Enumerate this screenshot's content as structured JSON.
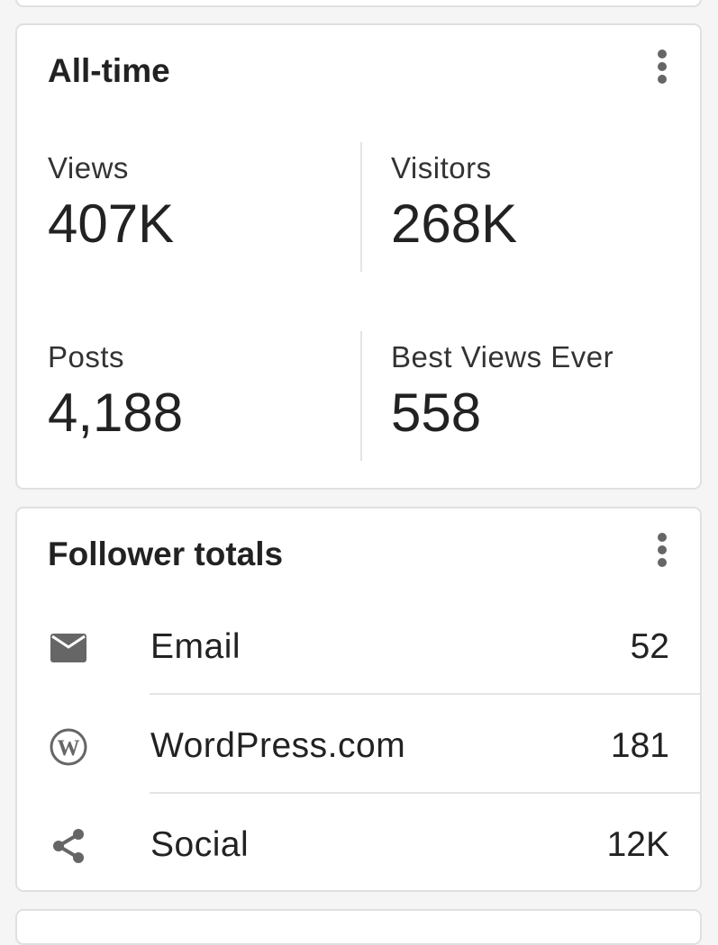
{
  "all_time": {
    "title": "All-time",
    "stats": [
      {
        "label": "Views",
        "value": "407K"
      },
      {
        "label": "Visitors",
        "value": "268K"
      },
      {
        "label": "Posts",
        "value": "4,188"
      },
      {
        "label": "Best Views Ever",
        "value": "558"
      }
    ]
  },
  "followers": {
    "title": "Follower totals",
    "rows": [
      {
        "icon": "email-icon",
        "label": "Email",
        "value": "52"
      },
      {
        "icon": "wordpress-icon",
        "label": "WordPress.com",
        "value": "181"
      },
      {
        "icon": "share-icon",
        "label": "Social",
        "value": "12K"
      }
    ]
  },
  "colors": {
    "icon": "#666666",
    "border": "#e0e0e0",
    "background": "#f5f5f5"
  }
}
